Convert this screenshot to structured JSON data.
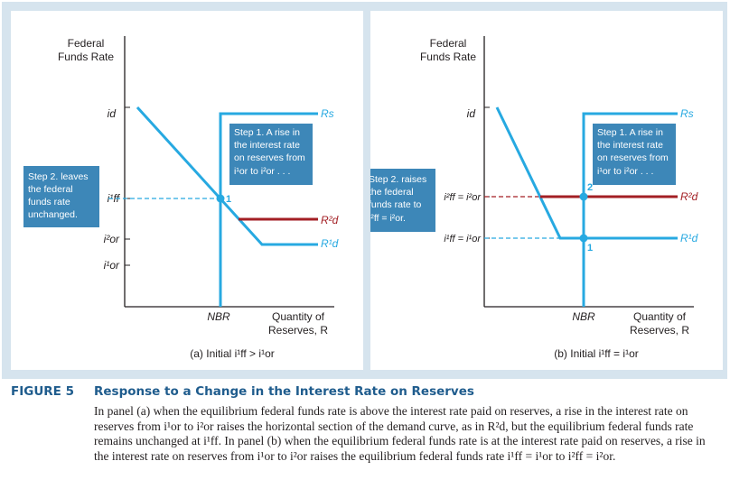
{
  "figure": {
    "number_label": "FIGURE 5",
    "title": "Response to a Change in the Interest Rate on Reserves",
    "caption": "In panel (a) when the equilibrium federal funds rate is above the interest rate paid on reserves, a rise in the interest rate on reserves from i¹or to i²or raises the horizontal section of the demand curve, as in R²d, but the equilibrium federal funds rate remains unchanged at i¹ff. In panel (b) when the equilibrium federal funds rate is at the interest rate paid on reserves, a rise in the interest rate on reserves from i¹or to i²or raises the equilibrium federal funds rate i¹ff = i¹or to i²ff = i²or."
  },
  "panel_a": {
    "y_axis_label_1": "Federal",
    "y_axis_label_2": "Funds Rate",
    "x_axis_label_1": "Quantity of",
    "x_axis_label_2": "Reserves, R",
    "nbr_label": "NBR",
    "id_label": "id",
    "iff_label": "i¹ff",
    "ior2_label": "i²or",
    "ior1_label": "i¹or",
    "rs_label": "Rs",
    "rd2_label": "R²d",
    "rd1_label": "R¹d",
    "point_label": "1",
    "step1_lines": [
      "Step 1. A rise in",
      "the interest rate",
      "on reserves from",
      "i¹or to i²or . . ."
    ],
    "step2_lines": [
      "Step 2. leaves",
      "the federal",
      "funds rate",
      "unchanged."
    ],
    "subtitle": "(a) Initial i¹ff > i¹or"
  },
  "panel_b": {
    "y_axis_label_1": "Federal",
    "y_axis_label_2": "Funds Rate",
    "x_axis_label_1": "Quantity of",
    "x_axis_label_2": "Reserves, R",
    "nbr_label": "NBR",
    "id_label": "id",
    "iff2_label": "i²ff = i²or",
    "iff1_label": "i¹ff = i¹or",
    "rs_label": "Rs",
    "rd2_label": "R²d",
    "rd1_label": "R¹d",
    "point1_label": "1",
    "point2_label": "2",
    "step1_lines": [
      "Step 1. A rise in",
      "the interest rate",
      "on reserves from",
      "i¹or to i²or . . ."
    ],
    "step2_lines": [
      "Step 2. raises",
      "the federal",
      "funds rate to",
      "i²ff = i²or."
    ],
    "subtitle": "(b) Initial i¹ff = i¹or"
  },
  "colors": {
    "frame": "#d6e4ee",
    "curve": "#27a9e1",
    "demand2": "#a31f24",
    "callout": "#3d87b8",
    "title": "#1f5c8d"
  }
}
